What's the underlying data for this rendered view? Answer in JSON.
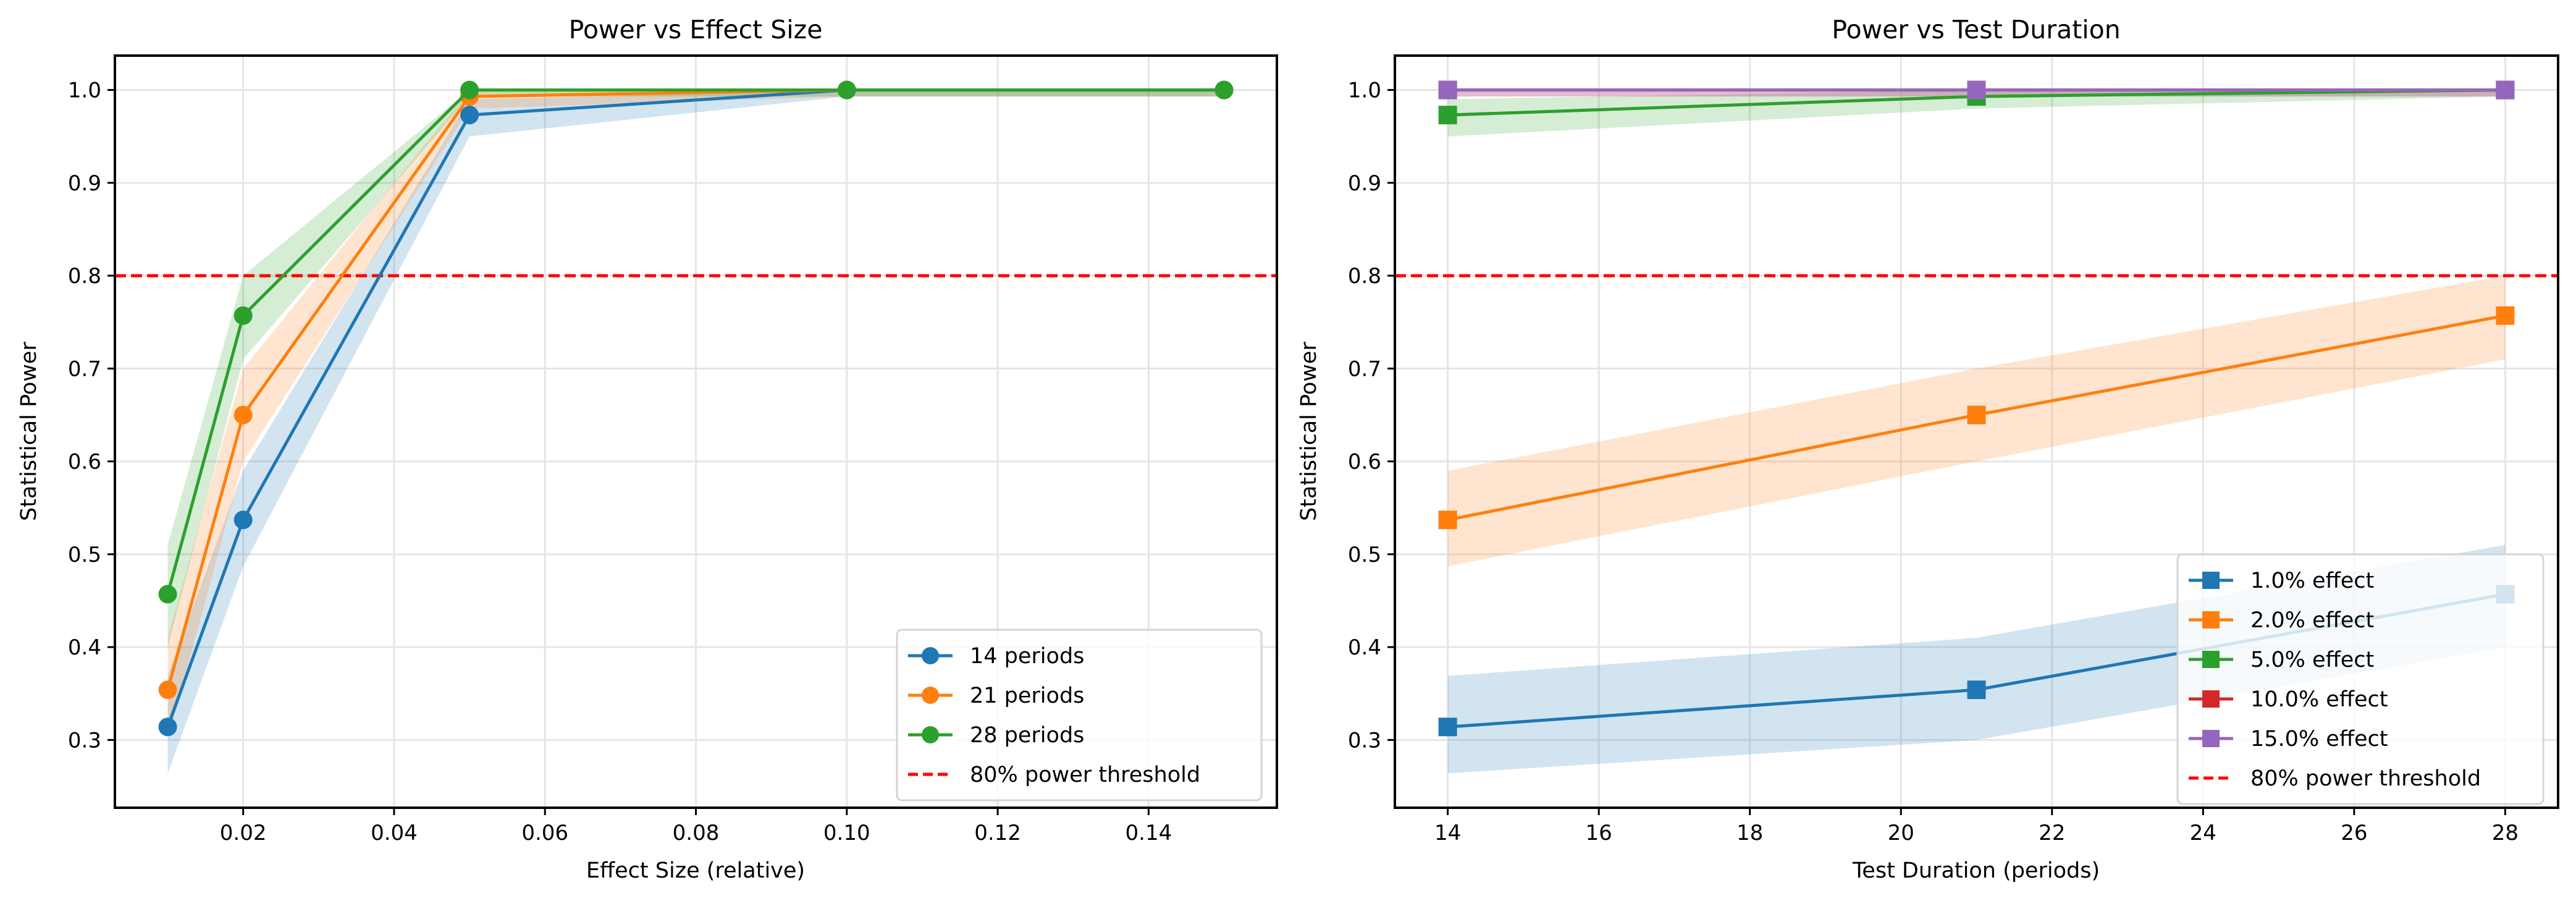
{
  "chart_data": [
    {
      "type": "line",
      "title": "Power vs Effect Size",
      "xlabel": "Effect Size (relative)",
      "ylabel": "Statistical Power",
      "xlim": [
        0.003,
        0.157
      ],
      "ylim": [
        0.227,
        1.037
      ],
      "xticks": [
        0.02,
        0.04,
        0.06,
        0.08,
        0.1,
        0.12,
        0.14
      ],
      "xtick_labels": [
        "0.02",
        "0.04",
        "0.06",
        "0.08",
        "0.10",
        "0.12",
        "0.14"
      ],
      "yticks": [
        0.3,
        0.4,
        0.5,
        0.6,
        0.7,
        0.8,
        0.9,
        1.0
      ],
      "ytick_labels": [
        "0.3",
        "0.4",
        "0.5",
        "0.6",
        "0.7",
        "0.8",
        "0.9",
        "1.0"
      ],
      "grid": true,
      "legend_position": "bottom-right",
      "marker": "circle",
      "x": [
        0.01,
        0.02,
        0.05,
        0.1,
        0.15
      ],
      "series": [
        {
          "name": "14 periods",
          "color": "#1f77b4",
          "values": [
            0.314,
            0.537,
            0.973,
            1.0,
            1.0
          ],
          "ci_lower": [
            0.264,
            0.487,
            0.95,
            0.993,
            0.993
          ],
          "ci_upper": [
            0.369,
            0.59,
            0.99,
            1.0,
            1.0
          ]
        },
        {
          "name": "21 periods",
          "color": "#ff7f0e",
          "values": [
            0.354,
            0.65,
            0.993,
            1.0,
            1.0
          ],
          "ci_lower": [
            0.3,
            0.6,
            0.98,
            0.993,
            0.993
          ],
          "ci_upper": [
            0.41,
            0.7,
            1.0,
            1.0,
            1.0
          ]
        },
        {
          "name": "28 periods",
          "color": "#2ca02c",
          "values": [
            0.457,
            0.757,
            1.0,
            1.0,
            1.0
          ],
          "ci_lower": [
            0.4,
            0.71,
            0.993,
            0.993,
            0.993
          ],
          "ci_upper": [
            0.51,
            0.8,
            1.0,
            1.0,
            1.0
          ]
        }
      ],
      "threshold": {
        "name": "80% power threshold",
        "value": 0.8,
        "color": "#ff0000"
      }
    },
    {
      "type": "line",
      "title": "Power vs Test Duration",
      "xlabel": "Test Duration (periods)",
      "ylabel": "Statistical Power",
      "xlim": [
        13.3,
        28.7
      ],
      "ylim": [
        0.227,
        1.037
      ],
      "xticks": [
        14,
        16,
        18,
        20,
        22,
        24,
        26,
        28
      ],
      "xtick_labels": [
        "14",
        "16",
        "18",
        "20",
        "22",
        "24",
        "26",
        "28"
      ],
      "yticks": [
        0.3,
        0.4,
        0.5,
        0.6,
        0.7,
        0.8,
        0.9,
        1.0
      ],
      "ytick_labels": [
        "0.3",
        "0.4",
        "0.5",
        "0.6",
        "0.7",
        "0.8",
        "0.9",
        "1.0"
      ],
      "grid": true,
      "legend_position": "bottom-right",
      "marker": "square",
      "x": [
        14,
        21,
        28
      ],
      "series": [
        {
          "name": "1.0% effect",
          "color": "#1f77b4",
          "values": [
            0.314,
            0.354,
            0.457
          ],
          "ci_lower": [
            0.264,
            0.3,
            0.4
          ],
          "ci_upper": [
            0.369,
            0.41,
            0.51
          ]
        },
        {
          "name": "2.0% effect",
          "color": "#ff7f0e",
          "values": [
            0.537,
            0.65,
            0.757
          ],
          "ci_lower": [
            0.487,
            0.6,
            0.71
          ],
          "ci_upper": [
            0.59,
            0.7,
            0.8
          ]
        },
        {
          "name": "5.0% effect",
          "color": "#2ca02c",
          "values": [
            0.973,
            0.993,
            1.0
          ],
          "ci_lower": [
            0.95,
            0.98,
            0.993
          ],
          "ci_upper": [
            0.99,
            1.0,
            1.0
          ]
        },
        {
          "name": "10.0% effect",
          "color": "#d62728",
          "values": [
            1.0,
            1.0,
            1.0
          ],
          "ci_lower": [
            0.993,
            0.993,
            0.993
          ],
          "ci_upper": [
            1.0,
            1.0,
            1.0
          ]
        },
        {
          "name": "15.0% effect",
          "color": "#9467bd",
          "values": [
            1.0,
            1.0,
            1.0
          ],
          "ci_lower": [
            0.993,
            0.993,
            0.993
          ],
          "ci_upper": [
            1.0,
            1.0,
            1.0
          ]
        }
      ],
      "threshold": {
        "name": "80% power threshold",
        "value": 0.8,
        "color": "#ff0000"
      }
    }
  ]
}
